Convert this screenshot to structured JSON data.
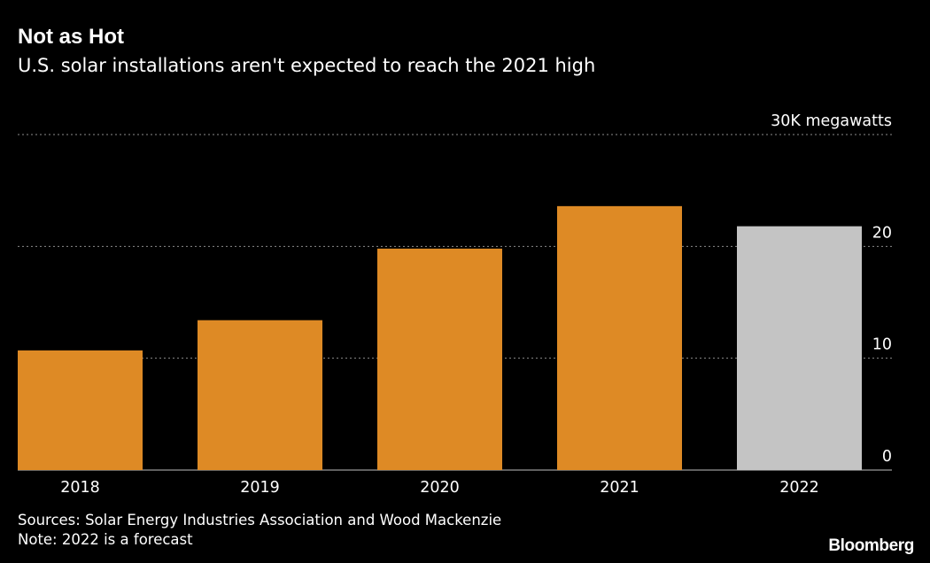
{
  "title": "Not as Hot",
  "subtitle": "U.S. solar installations aren't expected to reach the 2021 high",
  "colors": {
    "background": "#000000",
    "actual": "#DE8A25",
    "forecast": "#C4C4C4",
    "text": "#FFFFFF",
    "grid": "#8C8C8C"
  },
  "chart_data": {
    "type": "bar",
    "categories": [
      "2018",
      "2019",
      "2020",
      "2021",
      "2022"
    ],
    "values": [
      10.7,
      13.4,
      19.8,
      23.6,
      21.8
    ],
    "bar_kinds": [
      "actual",
      "actual",
      "actual",
      "actual",
      "forecast"
    ],
    "ylim": [
      0,
      30
    ],
    "y_ticks": [
      {
        "value": 0,
        "label": "0"
      },
      {
        "value": 10,
        "label": "10"
      },
      {
        "value": 20,
        "label": "20"
      },
      {
        "value": 30,
        "label": "30K megawatts"
      }
    ],
    "y_axis_side": "right",
    "grid": true,
    "grid_style": "dotted"
  },
  "footer": {
    "source": "Sources: Solar Energy Industries Association and Wood Mackenzie",
    "note": "Note: 2022 is a forecast",
    "brand": "Bloomberg"
  }
}
